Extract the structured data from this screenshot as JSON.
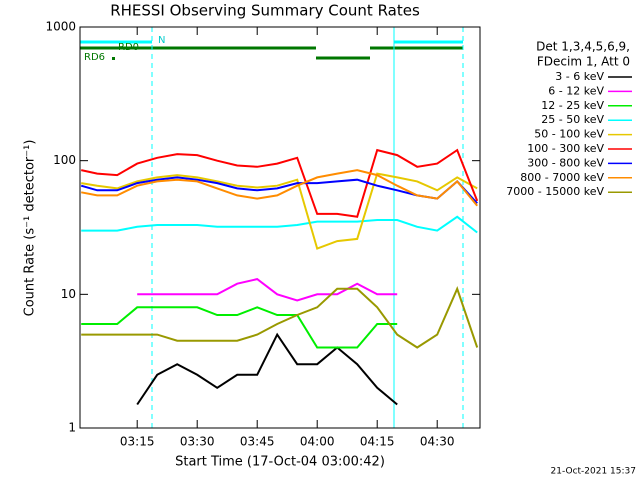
{
  "chart_data": {
    "type": "line",
    "title": "RHESSI Observing Summary Count Rates",
    "xlabel": "Start Time (17-Oct-04 03:00:42)",
    "ylabel": "Count Rate (s⁻¹ detector⁻¹)",
    "legend_title": [
      "Det 1,3,4,5,6,9,",
      "FDecim 1, Att 0"
    ],
    "annotations": [
      "N",
      "RD0",
      "RD6",
      "21-Oct-2021 15:37"
    ],
    "log_y": true,
    "legend": "right",
    "xlim": [
      0.7,
      100.7
    ],
    "xticks": [
      {
        "value": 15,
        "label": "03:15"
      },
      {
        "value": 30,
        "label": "03:30"
      },
      {
        "value": 45,
        "label": "03:45"
      },
      {
        "value": 60,
        "label": "04:00"
      },
      {
        "value": 75,
        "label": "04:15"
      },
      {
        "value": 90,
        "label": "04:30"
      }
    ],
    "ylim": [
      1,
      1000
    ],
    "yticks": [
      1,
      10,
      100,
      1000
    ],
    "x": [
      1,
      5,
      10,
      15,
      20,
      25,
      30,
      35,
      40,
      45,
      50,
      55,
      60,
      65,
      70,
      75,
      80,
      85,
      90,
      95,
      100
    ],
    "series": [
      {
        "name": "3 - 6 keV",
        "color": "#000000",
        "values": [
          null,
          null,
          null,
          1.5,
          2.5,
          3,
          2.5,
          2,
          2.5,
          2.5,
          5,
          3,
          3,
          4,
          3,
          2,
          1.5,
          null,
          null,
          null,
          null
        ]
      },
      {
        "name": "6 - 12 keV",
        "color": "#ff00ff",
        "values": [
          null,
          null,
          null,
          10,
          10,
          10,
          10,
          10,
          12,
          13,
          10,
          9,
          10,
          10,
          12,
          10,
          10,
          null,
          null,
          null,
          null
        ]
      },
      {
        "name": "12 - 25 keV",
        "color": "#00ee00",
        "values": [
          6,
          6,
          6,
          8,
          8,
          8,
          8,
          7,
          7,
          8,
          7,
          7,
          4,
          4,
          4,
          6,
          6,
          null,
          null,
          null,
          null
        ]
      },
      {
        "name": "25 - 50 keV",
        "color": "#00ffff",
        "values": [
          30,
          30,
          30,
          32,
          33,
          33,
          33,
          32,
          32,
          32,
          32,
          33,
          35,
          35,
          35,
          36,
          36,
          32,
          30,
          38,
          29
        ]
      },
      {
        "name": "50 - 100 keV",
        "color": "#e6c800",
        "values": [
          68,
          65,
          62,
          70,
          75,
          78,
          75,
          70,
          65,
          63,
          65,
          72,
          22,
          25,
          26,
          80,
          75,
          70,
          60,
          75,
          62
        ]
      },
      {
        "name": "100 - 300 keV",
        "color": "#ff0000",
        "values": [
          85,
          80,
          78,
          95,
          105,
          112,
          110,
          100,
          92,
          90,
          95,
          105,
          40,
          40,
          38,
          120,
          110,
          90,
          95,
          120,
          50
        ]
      },
      {
        "name": "300 - 800 keV",
        "color": "#0000ff",
        "values": [
          65,
          60,
          60,
          68,
          72,
          75,
          72,
          68,
          62,
          60,
          62,
          68,
          68,
          70,
          72,
          65,
          60,
          55,
          52,
          70,
          48
        ]
      },
      {
        "name": "800 - 7000 keV",
        "color": "#ff8c00",
        "values": [
          58,
          55,
          55,
          65,
          70,
          72,
          70,
          62,
          55,
          52,
          55,
          65,
          75,
          80,
          85,
          78,
          65,
          55,
          52,
          70,
          46
        ]
      },
      {
        "name": "7000 - 15000 keV",
        "color": "#999900",
        "values": [
          5,
          5,
          5,
          5,
          5,
          4.5,
          4.5,
          4.5,
          4.5,
          5,
          6,
          7,
          8,
          11,
          11,
          8,
          5,
          4,
          5,
          11,
          4
        ]
      }
    ]
  }
}
